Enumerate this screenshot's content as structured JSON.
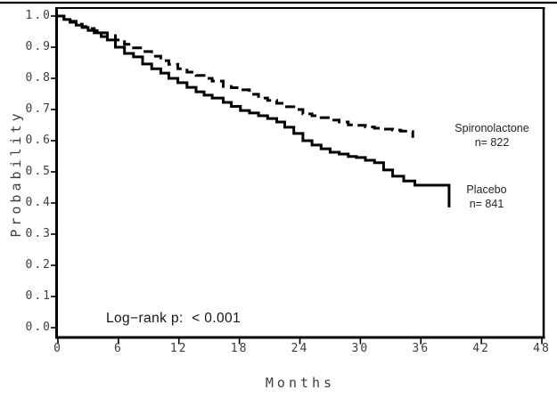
{
  "figure": {
    "top_rule": true,
    "background": "#ffffff",
    "line_color": "#000000",
    "text_color": "#3d3d3d"
  },
  "chart_data": {
    "type": "line",
    "subtype": "kaplan-meier-step",
    "title": "",
    "xlabel": "Months",
    "ylabel": "Probability",
    "xlim": [
      0,
      48
    ],
    "ylim": [
      0.0,
      1.0
    ],
    "x_ticks": [
      0,
      6,
      12,
      18,
      24,
      30,
      36,
      42,
      48
    ],
    "y_ticks": [
      "1.0",
      "0.9",
      "0.8",
      "0.7",
      "0.6",
      "0.5",
      "0.4",
      "0.3",
      "0.2",
      "0.1",
      "0.0"
    ],
    "grid": false,
    "frame": true,
    "annotation": "Log−rank p:  < 0.001",
    "legend_position": "inline-right-of-curves",
    "series": [
      {
        "name": "Spironolactone",
        "n_label": "n= 822",
        "style": "dashed",
        "color": "#000000",
        "points": [
          [
            0,
            1.0
          ],
          [
            0.6,
            0.991
          ],
          [
            1.2,
            0.983
          ],
          [
            1.8,
            0.974
          ],
          [
            2.4,
            0.966
          ],
          [
            3.0,
            0.96
          ],
          [
            3.6,
            0.953
          ],
          [
            4.3,
            0.946
          ],
          [
            4.9,
            0.937
          ],
          [
            5.7,
            0.923
          ],
          [
            6.6,
            0.909
          ],
          [
            7.5,
            0.898
          ],
          [
            8.4,
            0.886
          ],
          [
            9.3,
            0.871
          ],
          [
            10.2,
            0.857
          ],
          [
            11.0,
            0.845
          ],
          [
            11.9,
            0.831
          ],
          [
            12.8,
            0.82
          ],
          [
            13.7,
            0.809
          ],
          [
            14.5,
            0.8
          ],
          [
            15.3,
            0.791
          ],
          [
            16.4,
            0.774
          ],
          [
            17.2,
            0.77
          ],
          [
            18.1,
            0.763
          ],
          [
            19.0,
            0.749
          ],
          [
            19.9,
            0.737
          ],
          [
            20.8,
            0.729
          ],
          [
            21.7,
            0.72
          ],
          [
            22.5,
            0.709
          ],
          [
            23.4,
            0.7
          ],
          [
            24.3,
            0.686
          ],
          [
            25.2,
            0.68
          ],
          [
            26.1,
            0.674
          ],
          [
            27.0,
            0.666
          ],
          [
            27.9,
            0.66
          ],
          [
            28.8,
            0.651
          ],
          [
            29.6,
            0.649
          ],
          [
            30.5,
            0.644
          ],
          [
            31.4,
            0.64
          ],
          [
            32.3,
            0.637
          ],
          [
            33.2,
            0.634
          ],
          [
            34.0,
            0.631
          ],
          [
            34.7,
            0.629
          ],
          [
            35.2,
            0.609
          ]
        ]
      },
      {
        "name": "Placebo",
        "n_label": "n= 841",
        "style": "solid",
        "color": "#000000",
        "points": [
          [
            0,
            1.0
          ],
          [
            0.6,
            0.989
          ],
          [
            1.2,
            0.98
          ],
          [
            1.8,
            0.971
          ],
          [
            2.4,
            0.963
          ],
          [
            3.0,
            0.954
          ],
          [
            3.6,
            0.946
          ],
          [
            4.3,
            0.934
          ],
          [
            4.9,
            0.923
          ],
          [
            5.7,
            0.9
          ],
          [
            6.6,
            0.88
          ],
          [
            7.5,
            0.869
          ],
          [
            8.4,
            0.846
          ],
          [
            9.3,
            0.831
          ],
          [
            10.2,
            0.817
          ],
          [
            11.0,
            0.8
          ],
          [
            11.9,
            0.786
          ],
          [
            12.8,
            0.771
          ],
          [
            13.7,
            0.757
          ],
          [
            14.5,
            0.746
          ],
          [
            15.3,
            0.737
          ],
          [
            16.4,
            0.723
          ],
          [
            17.2,
            0.71
          ],
          [
            18.1,
            0.697
          ],
          [
            19.0,
            0.689
          ],
          [
            19.9,
            0.68
          ],
          [
            20.8,
            0.671
          ],
          [
            21.7,
            0.66
          ],
          [
            22.5,
            0.643
          ],
          [
            23.4,
            0.623
          ],
          [
            24.3,
            0.6
          ],
          [
            25.2,
            0.586
          ],
          [
            26.1,
            0.574
          ],
          [
            27.0,
            0.563
          ],
          [
            27.9,
            0.557
          ],
          [
            28.8,
            0.549
          ],
          [
            29.6,
            0.546
          ],
          [
            30.5,
            0.537
          ],
          [
            31.4,
            0.529
          ],
          [
            32.3,
            0.506
          ],
          [
            33.2,
            0.486
          ],
          [
            34.3,
            0.471
          ],
          [
            35.4,
            0.457
          ],
          [
            38.7,
            0.457
          ],
          [
            38.8,
            0.386
          ]
        ]
      }
    ]
  }
}
